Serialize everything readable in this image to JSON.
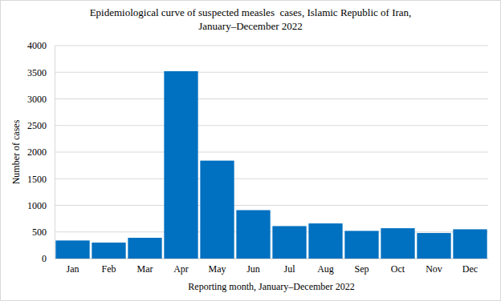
{
  "chart_data": {
    "type": "bar",
    "title": "Epidemiological curve of suspected measles  cases, Islamic Republic of Iran,\nJanuary–December 2022",
    "x_label": "Reporting month, January–December 2022",
    "y_label": "Number of cases",
    "categories": [
      "Jan",
      "Feb",
      "Mar",
      "Apr",
      "May",
      "Jun",
      "Jul",
      "Aug",
      "Sep",
      "Oct",
      "Nov",
      "Dec"
    ],
    "values": [
      340,
      300,
      390,
      3520,
      1840,
      910,
      610,
      660,
      520,
      570,
      480,
      550
    ],
    "color": "#0070c0",
    "ylim": [
      0,
      4000
    ],
    "yticks": [
      0,
      500,
      1000,
      1500,
      2000,
      2500,
      3000,
      3500,
      4000
    ],
    "grid": true
  }
}
